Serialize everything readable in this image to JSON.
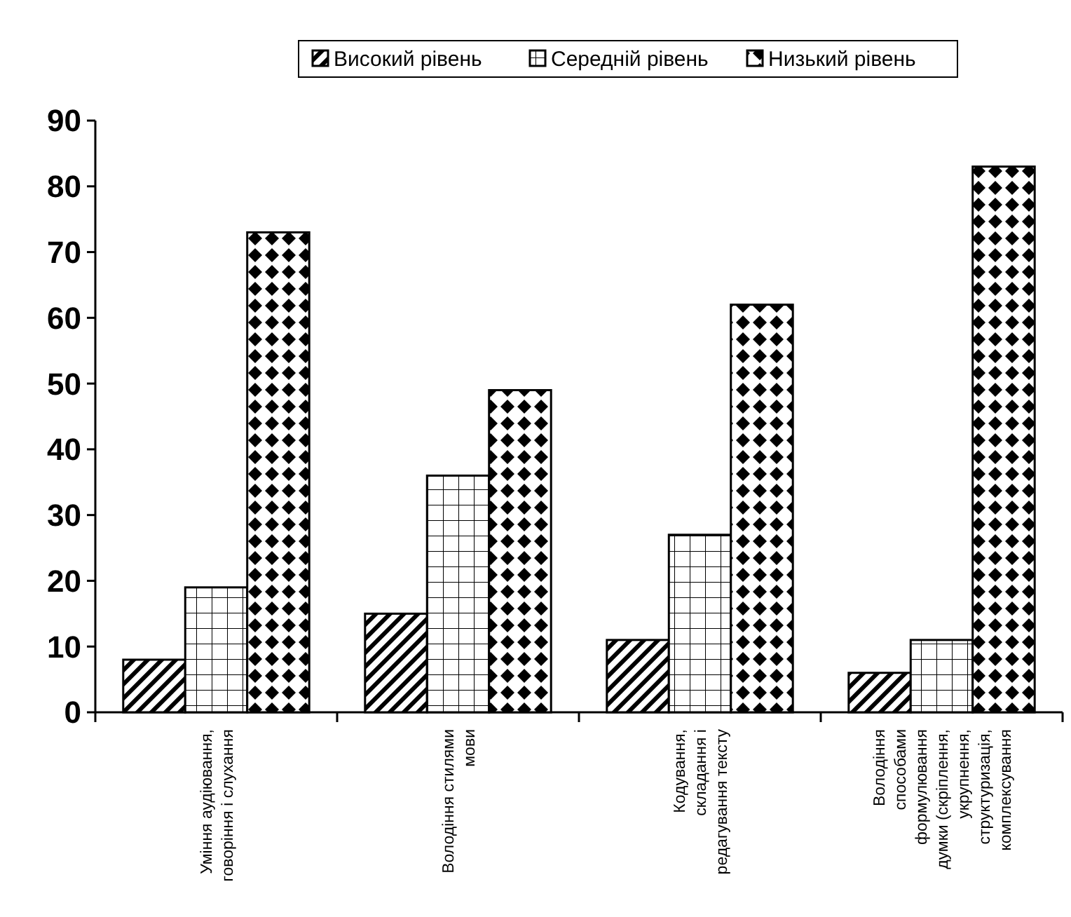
{
  "chart_data": {
    "type": "bar",
    "categories": [
      "Уміння аудіювання,\nговоріння і слухання",
      "Володіння стилями\nмови",
      "Кодування,\nскладання і\nредагування тексту",
      "Володіння\nспособами\nформулювання\nдумки (скріплення,\nукрупнення,\nструктуризація,\nкомплексування"
    ],
    "series": [
      {
        "name": "Високий рівень",
        "color": "#000000",
        "values": [
          8,
          15,
          11,
          6
        ]
      },
      {
        "name": "Середній рівень",
        "color": "#000000",
        "values": [
          19,
          36,
          27,
          11
        ]
      },
      {
        "name": "Низький рівень",
        "color": "#000000",
        "values": [
          73,
          49,
          62,
          83
        ]
      }
    ],
    "ylim": [
      0,
      90
    ],
    "yticks": [
      0,
      10,
      20,
      30,
      40,
      50,
      60,
      70,
      80,
      90
    ],
    "legend": "top",
    "grid": false
  }
}
